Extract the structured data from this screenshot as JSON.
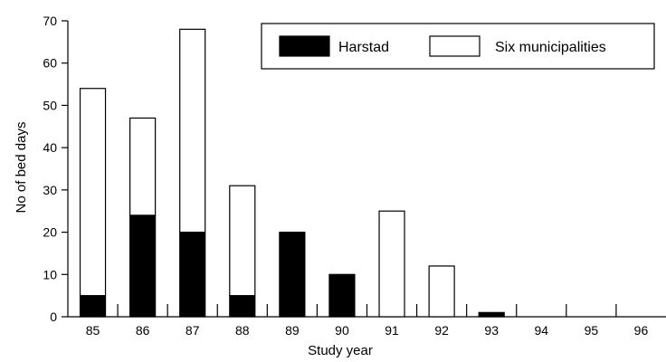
{
  "chart_data": {
    "type": "bar",
    "stacked": true,
    "categories": [
      "85",
      "86",
      "87",
      "88",
      "89",
      "90",
      "91",
      "92",
      "93",
      "94",
      "95",
      "96"
    ],
    "series": [
      {
        "name": "Harstad",
        "color": "#000000",
        "values": [
          5,
          24,
          20,
          5,
          20,
          10,
          0,
          0,
          1,
          0,
          0,
          0
        ]
      },
      {
        "name": "Six municipalities",
        "color": "#ffffff",
        "values": [
          49,
          23,
          48,
          26,
          0,
          0,
          25,
          12,
          0,
          0,
          0,
          0
        ]
      }
    ],
    "xlabel": "Study year",
    "ylabel": "No of bed days",
    "ylim": [
      0,
      70
    ],
    "yticks": [
      0,
      10,
      20,
      30,
      40,
      50,
      60,
      70
    ],
    "grid": false,
    "legend_position": "top-right"
  }
}
